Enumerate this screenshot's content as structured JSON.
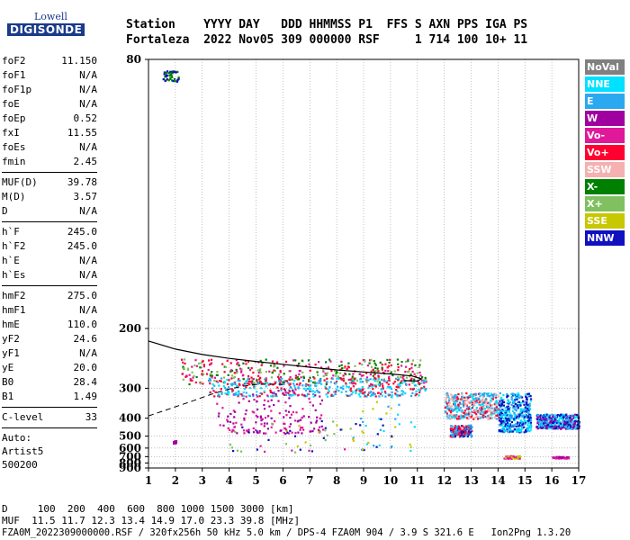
{
  "logo": {
    "line1": "Lowell",
    "line2": "DIGISONDE"
  },
  "header": {
    "row1": "Station    YYYY DAY   DDD HHMMSS P1  FFS S AXN PPS IGA PS",
    "row2": "Fortaleza  2022 Nov05 309 000000 RSF     1 714 100 10+ 11"
  },
  "params_group1": [
    {
      "name": "foF2",
      "value": "11.150"
    },
    {
      "name": "foF1",
      "value": "N/A"
    },
    {
      "name": "foF1p",
      "value": "N/A"
    },
    {
      "name": "foE",
      "value": "N/A"
    },
    {
      "name": "foEp",
      "value": "0.52"
    },
    {
      "name": "fxI",
      "value": "11.55"
    },
    {
      "name": "foEs",
      "value": "N/A"
    },
    {
      "name": "fmin",
      "value": "2.45"
    }
  ],
  "params_group2": [
    {
      "name": "MUF(D)",
      "value": "39.78"
    },
    {
      "name": "M(D)",
      "value": "3.57"
    },
    {
      "name": "D",
      "value": "N/A"
    }
  ],
  "params_group3": [
    {
      "name": "h`F",
      "value": "245.0"
    },
    {
      "name": "h`F2",
      "value": "245.0"
    },
    {
      "name": "h`E",
      "value": "N/A"
    },
    {
      "name": "h`Es",
      "value": "N/A"
    }
  ],
  "params_group4": [
    {
      "name": "hmF2",
      "value": "275.0"
    },
    {
      "name": "hmF1",
      "value": "N/A"
    },
    {
      "name": "hmE",
      "value": "110.0"
    },
    {
      "name": "yF2",
      "value": "24.6"
    },
    {
      "name": "yF1",
      "value": "N/A"
    },
    {
      "name": "yE",
      "value": "20.0"
    },
    {
      "name": "B0",
      "value": "28.4"
    },
    {
      "name": "B1",
      "value": "1.49"
    }
  ],
  "params_group5": [
    {
      "name": "C-level",
      "value": "33"
    }
  ],
  "auto": {
    "line1": "Auto:",
    "line2": "Artist5",
    "line3": "500200"
  },
  "legend": [
    {
      "label": "NoVal",
      "color": "#808080"
    },
    {
      "label": "NNE",
      "color": "#00e0ff"
    },
    {
      "label": "E",
      "color": "#2aa8f0"
    },
    {
      "label": "W",
      "color": "#a000a0"
    },
    {
      "label": "Vo-",
      "color": "#e0189a"
    },
    {
      "label": "Vo+",
      "color": "#ff0030"
    },
    {
      "label": "SSW",
      "color": "#f5b0b0"
    },
    {
      "label": "X-",
      "color": "#008000"
    },
    {
      "label": "X+",
      "color": "#80c060"
    },
    {
      "label": "SSE",
      "color": "#c8c800"
    },
    {
      "label": "NNW",
      "color": "#1010c0"
    }
  ],
  "footer": {
    "line1": "D     100  200  400  600  800 1000 1500 3000 [km]",
    "line2": "MUF  11.5 11.7 12.3 13.4 14.9 17.0 23.3 39.8 [MHz]",
    "line3": "FZA0M_2022309000000.RSF / 320fx256h 50 kHz 5.0 km / DPS-4 FZA0M 904 / 3.9 S 321.6 E   Ion2Png 1.3.20"
  },
  "chart_data": {
    "type": "scatter",
    "xlabel": "",
    "ylabel": "",
    "x_ticks": [
      1,
      2,
      3,
      4,
      5,
      6,
      7,
      8,
      9,
      10,
      11,
      12,
      13,
      14,
      15,
      16,
      17
    ],
    "y_ticks": [
      80,
      200,
      300,
      400,
      500,
      600,
      700,
      800,
      900
    ],
    "xlim": [
      1,
      17
    ],
    "ylim": [
      80,
      900
    ],
    "y_scale": "reciprocal",
    "grid": "dotted",
    "trace_curve_lower": [
      [
        1.0,
        215
      ],
      [
        2.0,
        226
      ],
      [
        3.0,
        234
      ],
      [
        4.0,
        240
      ],
      [
        5.0,
        245
      ],
      [
        6.0,
        250
      ],
      [
        7.0,
        255
      ],
      [
        8.0,
        260
      ],
      [
        9.0,
        264
      ],
      [
        10.0,
        268
      ],
      [
        10.8,
        272
      ],
      [
        11.15,
        278
      ],
      [
        11.0,
        283
      ],
      [
        10.5,
        282
      ]
    ],
    "trace_curve_dashed": [
      [
        1.0,
        390
      ],
      [
        1.5,
        372
      ],
      [
        2.0,
        355
      ],
      [
        2.5,
        340
      ],
      [
        3.0,
        325
      ],
      [
        3.5,
        312
      ],
      [
        4.0,
        302
      ],
      [
        4.5,
        295
      ],
      [
        5.0,
        291
      ],
      [
        5.5,
        290
      ],
      [
        6.0,
        291
      ]
    ],
    "echo_clusters": [
      {
        "x": [
          2.2,
          11.3
        ],
        "y": [
          240,
          290
        ],
        "colors": [
          "#ff0030",
          "#80c060",
          "#008000",
          "#e0189a"
        ],
        "density": "high"
      },
      {
        "x": [
          3.2,
          11.3
        ],
        "y": [
          275,
          320
        ],
        "colors": [
          "#2aa8f0",
          "#00e0ff",
          "#ff0030"
        ],
        "density": "high"
      },
      {
        "x": [
          3.5,
          7.5
        ],
        "y": [
          300,
          480
        ],
        "colors": [
          "#a000a0",
          "#e0189a"
        ],
        "density": "medium"
      },
      {
        "x": [
          4.0,
          8.5
        ],
        "y": [
          400,
          640
        ],
        "colors": [
          "#80c060",
          "#c8c800",
          "#e0189a",
          "#1010c0"
        ],
        "density": "low"
      },
      {
        "x": [
          8.5,
          11.0
        ],
        "y": [
          320,
          620
        ],
        "colors": [
          "#00e0ff",
          "#2aa8f0",
          "#1010c0",
          "#c8c800"
        ],
        "density": "low"
      },
      {
        "x": [
          12.0,
          14.0
        ],
        "y": [
          310,
          400
        ],
        "colors": [
          "#f5b0b0",
          "#2aa8f0",
          "#00e0ff",
          "#ff0030"
        ],
        "density": "high"
      },
      {
        "x": [
          12.2,
          13.0
        ],
        "y": [
          430,
          500
        ],
        "colors": [
          "#1010c0",
          "#ff0030",
          "#2aa8f0"
        ],
        "density": "medium"
      },
      {
        "x": [
          14.0,
          15.2
        ],
        "y": [
          310,
          470
        ],
        "colors": [
          "#1010c0",
          "#2aa8f0",
          "#00e0ff"
        ],
        "density": "high"
      },
      {
        "x": [
          15.4,
          17.0
        ],
        "y": [
          380,
          450
        ],
        "colors": [
          "#2aa8f0",
          "#1010c0",
          "#a000a0",
          "#00e0ff"
        ],
        "density": "high"
      },
      {
        "x": [
          14.2,
          14.8
        ],
        "y": [
          680,
          720
        ],
        "colors": [
          "#c8c800",
          "#e0189a"
        ],
        "density": "low"
      },
      {
        "x": [
          16.0,
          16.6
        ],
        "y": [
          690,
          715
        ],
        "colors": [
          "#a000a0",
          "#e0189a"
        ],
        "density": "low"
      },
      {
        "x": [
          1.5,
          2.1
        ],
        "y": [
          82,
          84
        ],
        "colors": [
          "#008000",
          "#1010c0"
        ],
        "density": "low"
      },
      {
        "x": [
          1.9,
          2.0
        ],
        "y": [
          530,
          550
        ],
        "colors": [
          "#a000a0"
        ],
        "density": "low"
      }
    ]
  }
}
